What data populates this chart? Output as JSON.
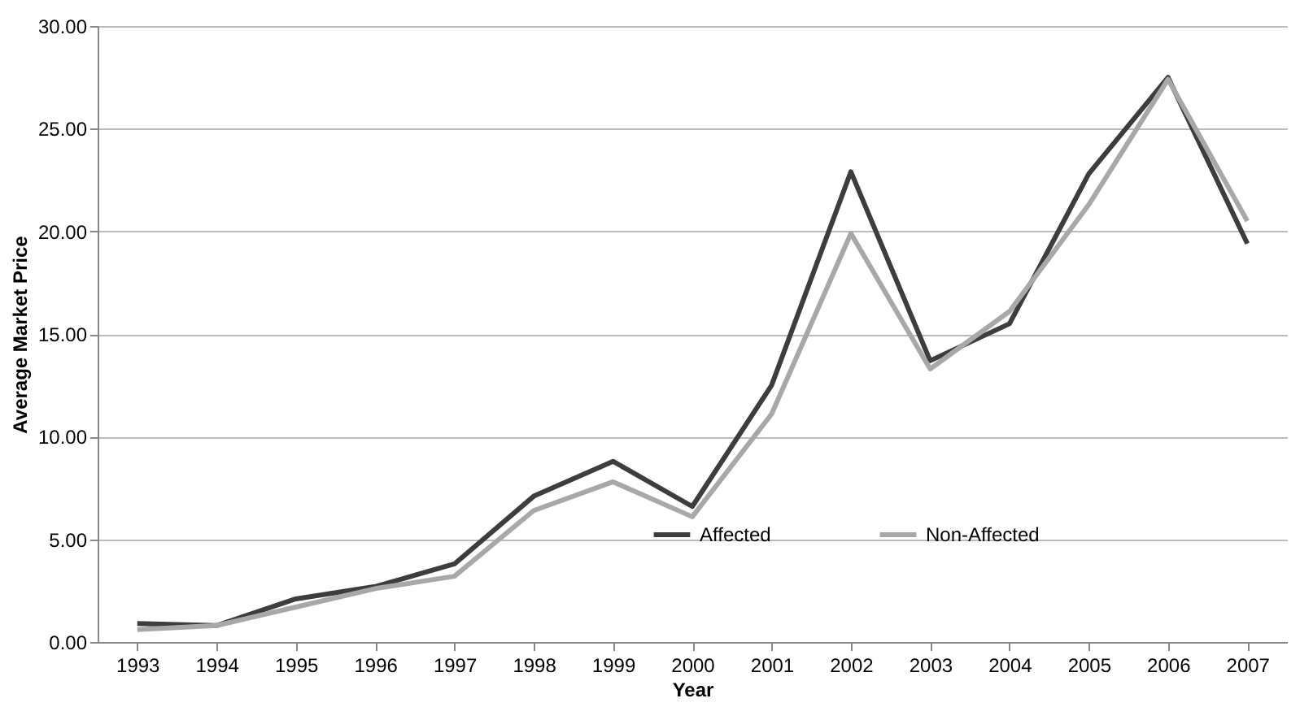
{
  "chart_data": {
    "type": "line",
    "xlabel": "Year",
    "ylabel": "Average Market Price",
    "categories": [
      "1993",
      "1994",
      "1995",
      "1996",
      "1997",
      "1998",
      "1999",
      "2000",
      "2001",
      "2002",
      "2003",
      "2004",
      "2005",
      "2006",
      "2007"
    ],
    "series": [
      {
        "name": "Affected",
        "color": "#3d3d3d",
        "values": [
          0.9,
          0.8,
          2.1,
          2.7,
          3.8,
          7.1,
          8.8,
          6.6,
          12.5,
          22.9,
          13.7,
          15.5,
          22.8,
          27.5,
          19.4
        ]
      },
      {
        "name": "Non-Affected",
        "color": "#a8a8a8",
        "values": [
          0.6,
          0.8,
          1.7,
          2.6,
          3.2,
          6.4,
          7.8,
          6.1,
          11.1,
          19.9,
          13.3,
          16.1,
          21.3,
          27.4,
          20.5
        ]
      }
    ],
    "ylim": [
      0,
      30
    ],
    "yticks": [
      {
        "value": 0,
        "label": "0.00"
      },
      {
        "value": 5,
        "label": "5.00"
      },
      {
        "value": 10,
        "label": "10.00"
      },
      {
        "value": 15,
        "label": "15.00"
      },
      {
        "value": 20,
        "label": "20.00"
      },
      {
        "value": 25,
        "label": "25.00"
      },
      {
        "value": 30,
        "label": "30.00"
      }
    ],
    "grid": "y",
    "legend": "bottom",
    "marker": "none",
    "line_style": "solid"
  }
}
